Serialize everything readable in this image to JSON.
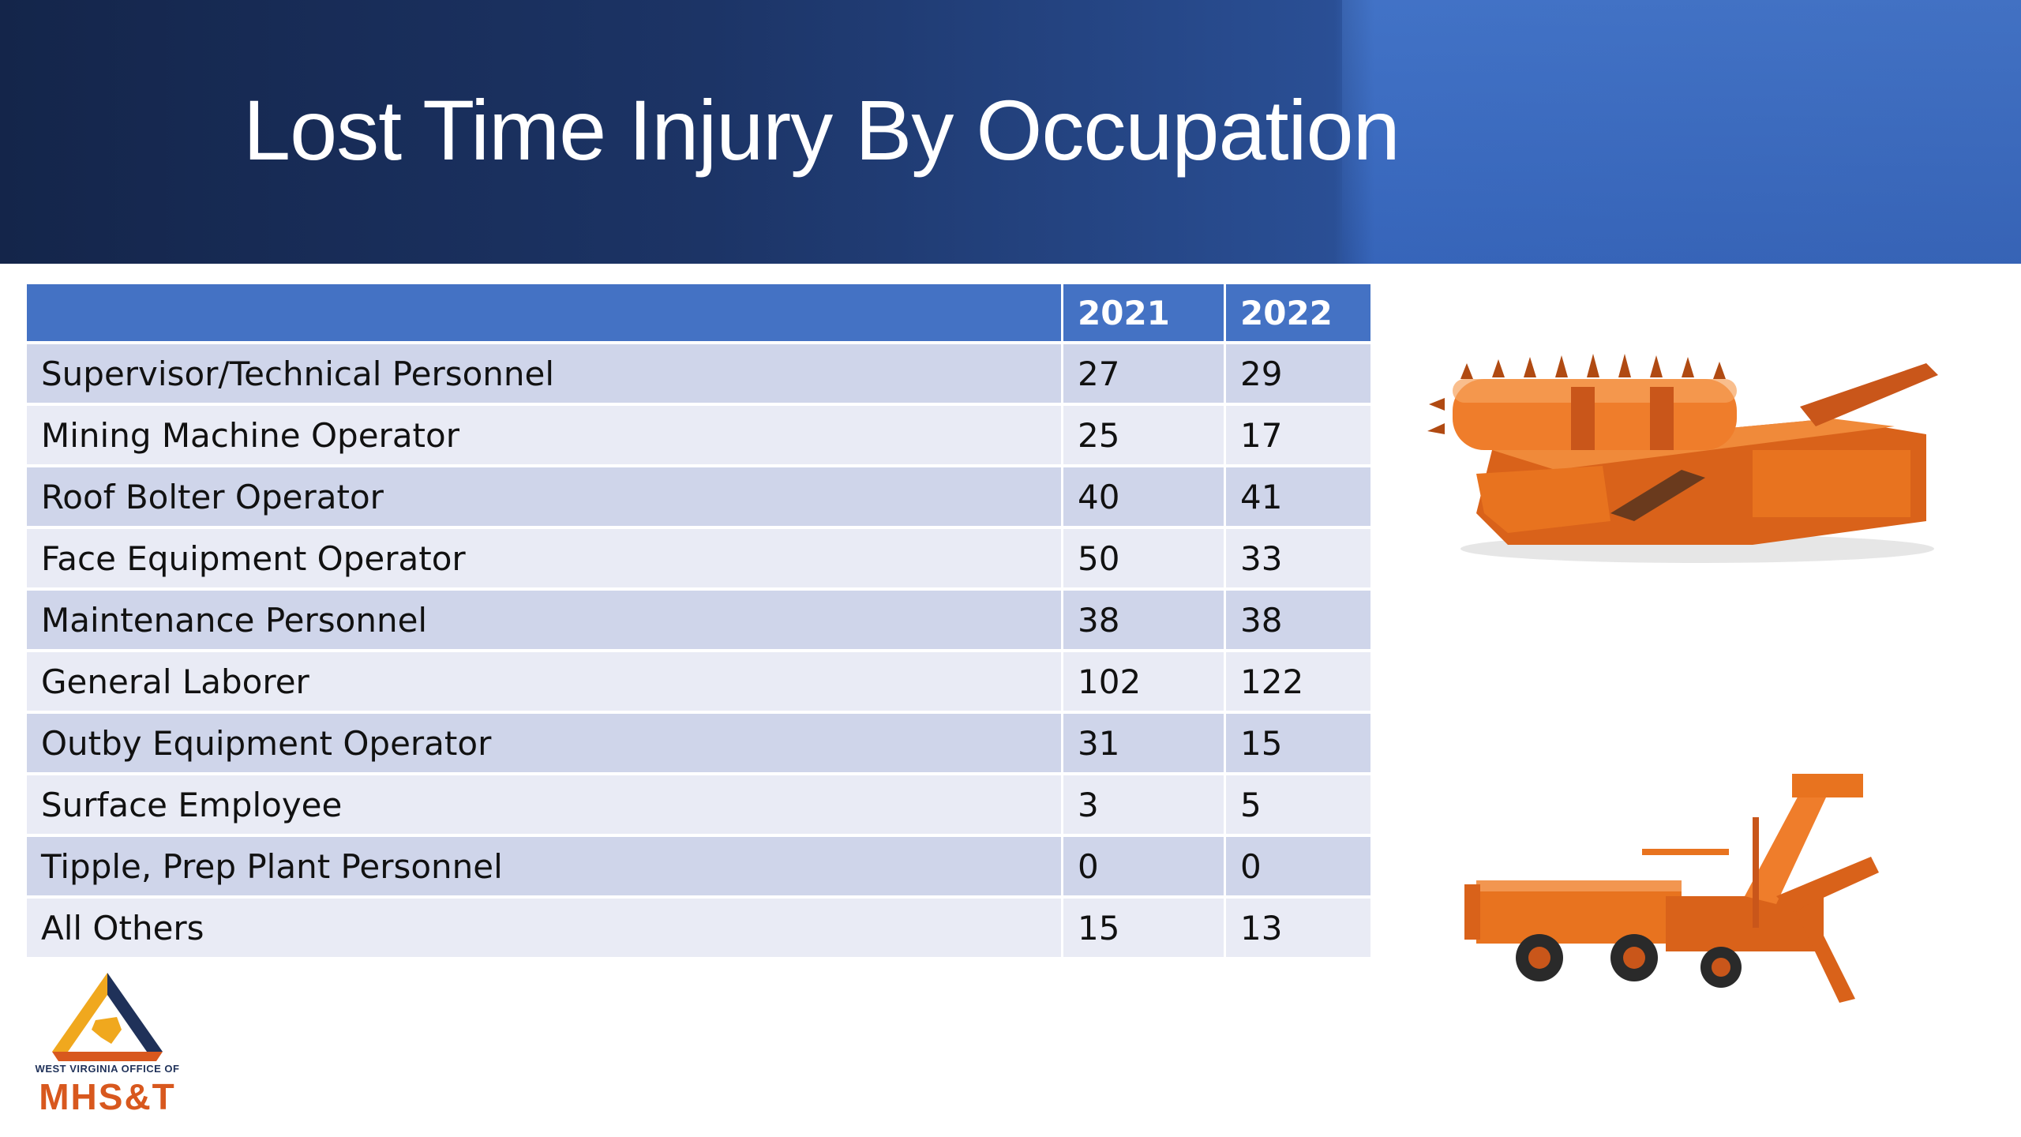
{
  "slide": {
    "title": "Lost Time Injury By Occupation"
  },
  "table": {
    "headers": [
      "",
      "2021",
      "2022"
    ],
    "rows": [
      {
        "occupation": "Supervisor/Technical Personnel",
        "y2021": "27",
        "y2022": "29"
      },
      {
        "occupation": "Mining Machine Operator",
        "y2021": "25",
        "y2022": "17"
      },
      {
        "occupation": "Roof Bolter Operator",
        "y2021": "40",
        "y2022": "41"
      },
      {
        "occupation": "Face Equipment Operator",
        "y2021": "50",
        "y2022": "33"
      },
      {
        "occupation": "Maintenance Personnel",
        "y2021": "38",
        "y2022": "38"
      },
      {
        "occupation": "General Laborer",
        "y2021": "102",
        "y2022": "122"
      },
      {
        "occupation": "Outby Equipment Operator",
        "y2021": "31",
        "y2022": "15"
      },
      {
        "occupation": "Surface Employee",
        "y2021": "3",
        "y2022": "5"
      },
      {
        "occupation": "Tipple, Prep Plant Personnel",
        "y2021": "0",
        "y2022": "0"
      },
      {
        "occupation": "All Others",
        "y2021": "15",
        "y2022": "13"
      }
    ]
  },
  "logo": {
    "small_text": "WEST VIRGINIA OFFICE OF",
    "big_text": "MHS&T"
  },
  "colors": {
    "header_blue": "#4472c4",
    "row_dark": "#cfd5ea",
    "row_light": "#e9ebf5",
    "machine_orange": "#e8731f"
  }
}
